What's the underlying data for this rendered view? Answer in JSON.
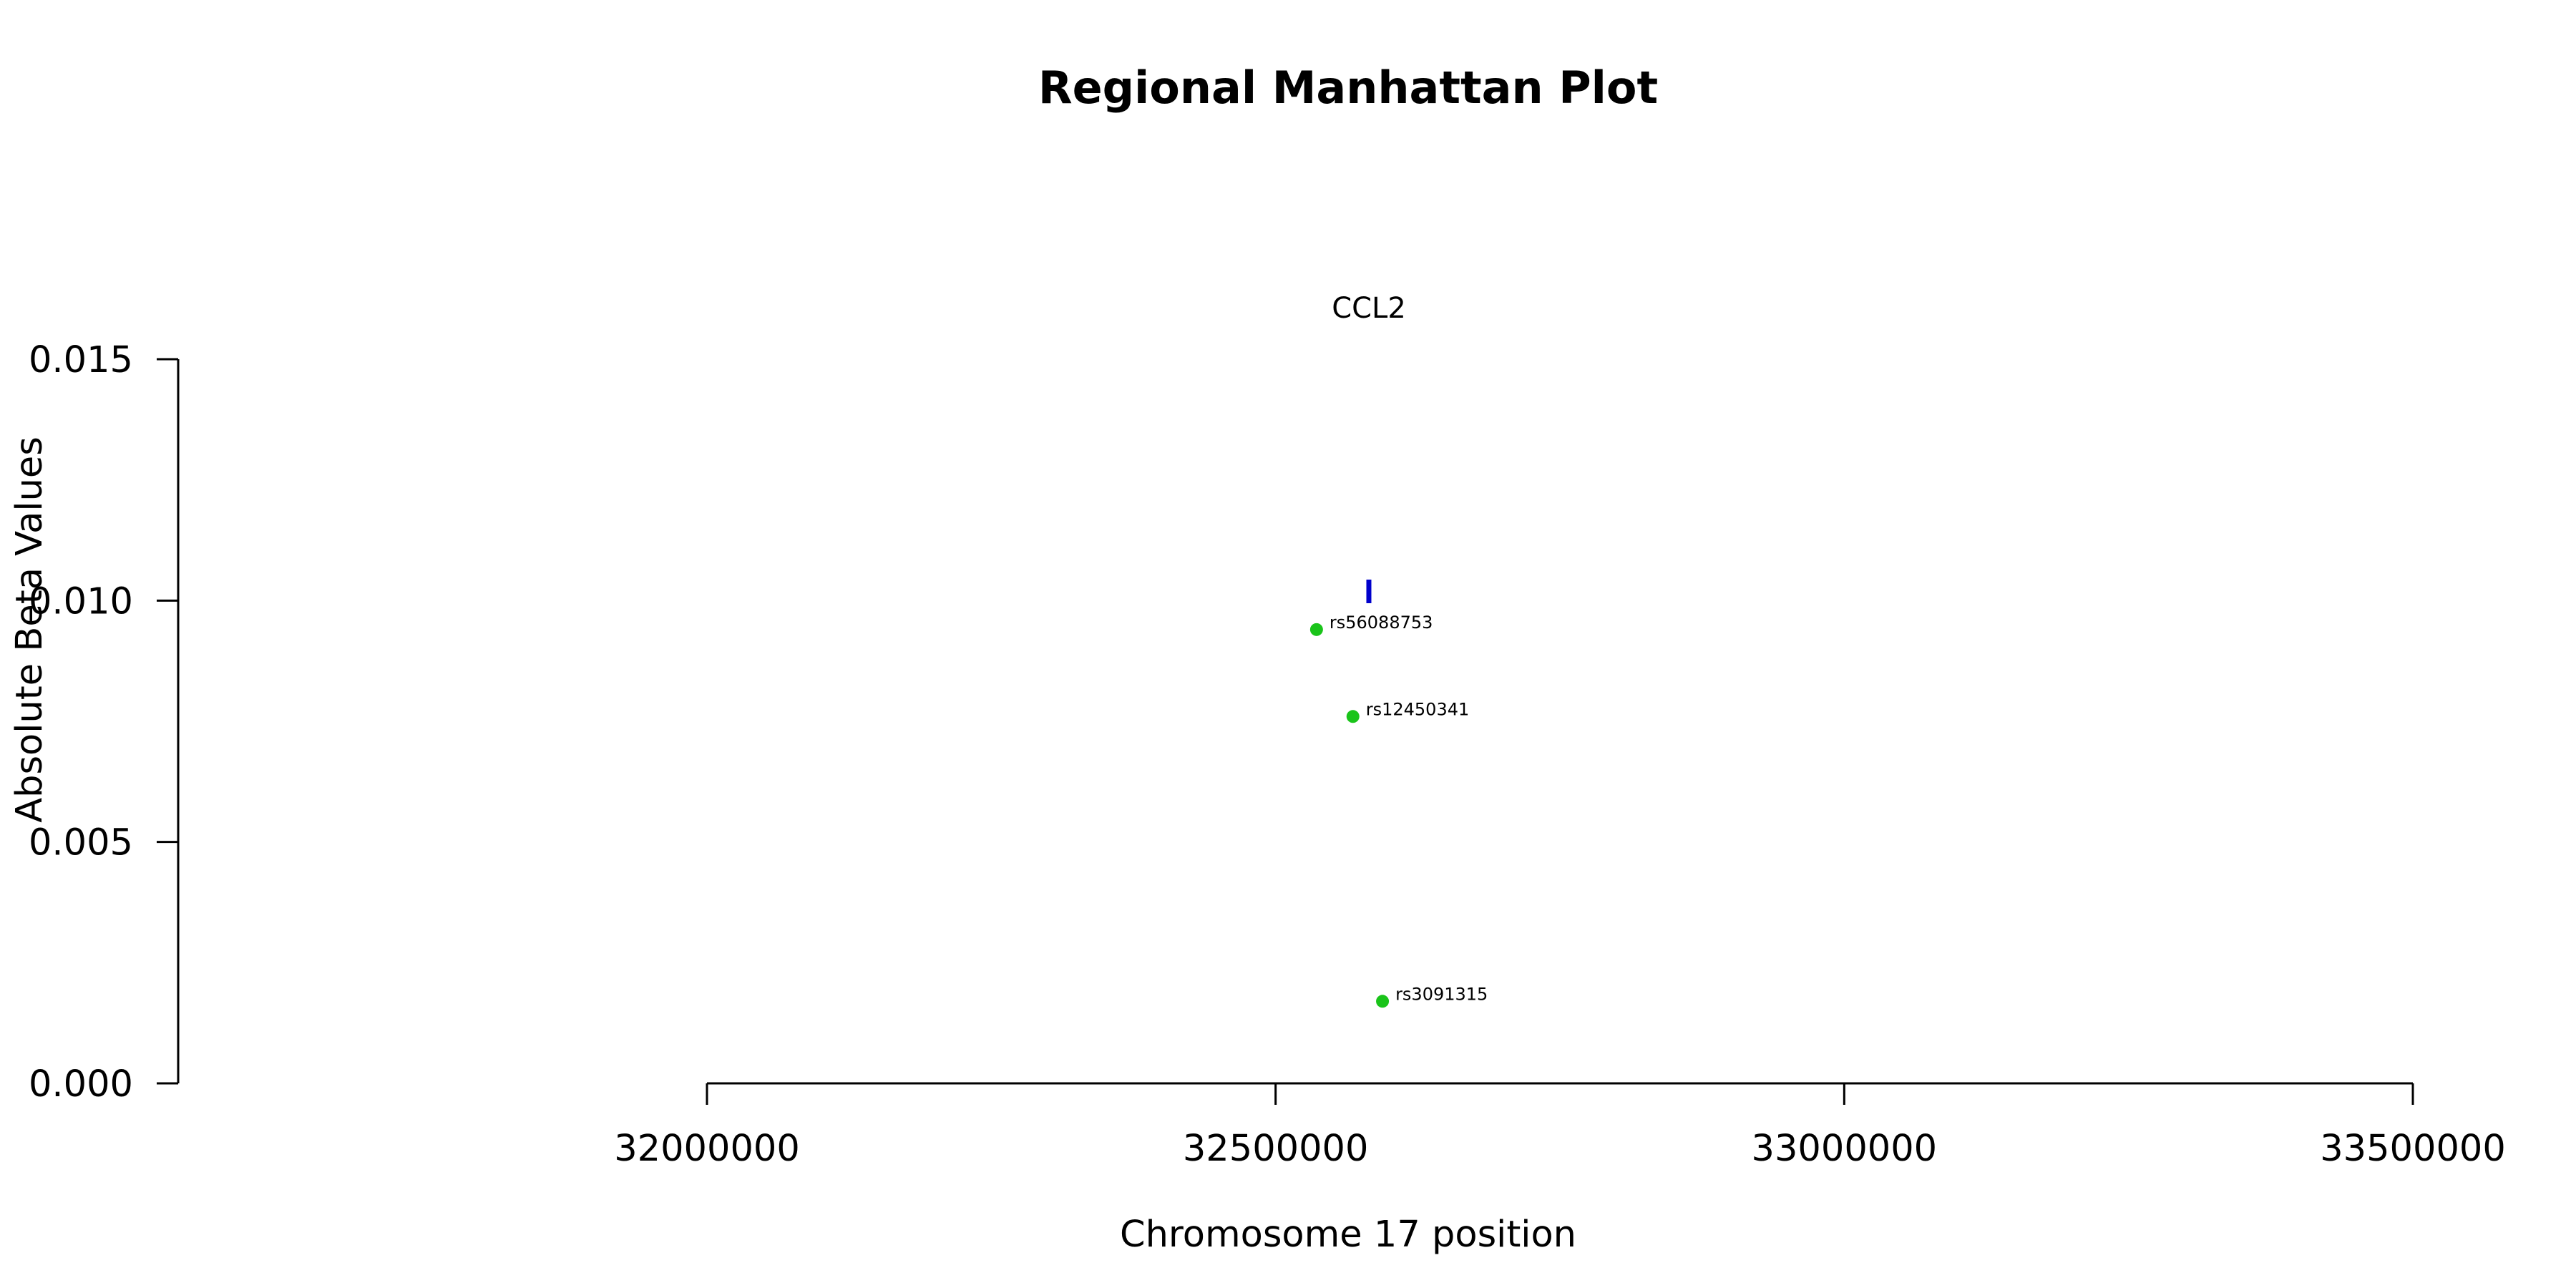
{
  "chart_data": {
    "type": "scatter",
    "title": "Regional Manhattan Plot",
    "xlabel": "Chromosome 17 position",
    "ylabel": "Absolute Beta Values",
    "xlim": [
      32000000,
      33500000
    ],
    "ylim": [
      0,
      0.015
    ],
    "x_ticks": [
      32000000,
      32500000,
      33000000,
      33500000
    ],
    "y_ticks": [
      "0.000",
      "0.005",
      "0.010",
      "0.015"
    ],
    "grid": false,
    "points": [
      {
        "label": "rs56088753",
        "x": 32536000,
        "y": 0.0094
      },
      {
        "label": "rs12450341",
        "x": 32568000,
        "y": 0.0076
      },
      {
        "label": "rs3091315",
        "x": 32594000,
        "y": 0.0017
      }
    ],
    "point_color": "#1ac41a",
    "gene": {
      "name": "CCL2",
      "position": 32582000,
      "color": "#0000cc"
    }
  }
}
